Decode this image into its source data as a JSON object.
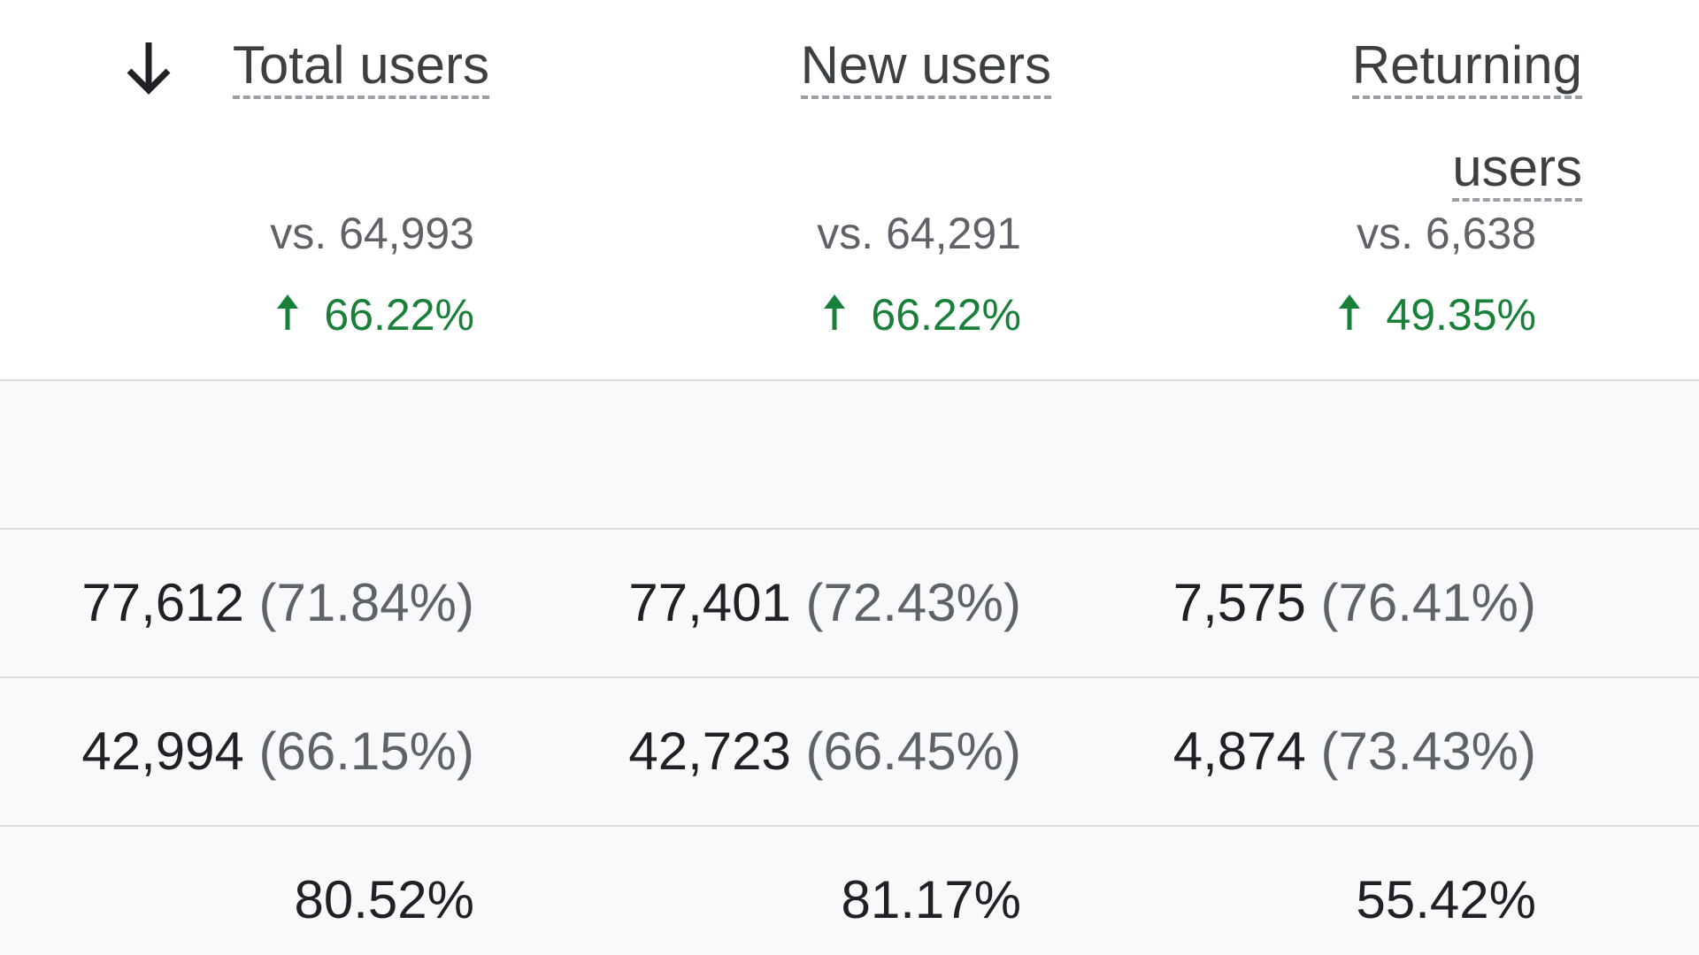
{
  "columns": [
    {
      "header": "Total users",
      "sorted": "descending",
      "comparison": "vs. 64,993",
      "change": "66.22%",
      "change_direction": "up"
    },
    {
      "header": "New users",
      "comparison": "vs. 64,291",
      "change": "66.22%",
      "change_direction": "up"
    },
    {
      "header_lines": [
        "Returning",
        "users"
      ],
      "comparison": "vs. 6,638",
      "change": "49.35%",
      "change_direction": "up"
    }
  ],
  "rows": [
    {
      "cells": [
        {
          "value": "77,612",
          "pct": "(71.84%)"
        },
        {
          "value": "77,401",
          "pct": "(72.43%)"
        },
        {
          "value": "7,575",
          "pct": "(76.41%)"
        }
      ]
    },
    {
      "cells": [
        {
          "value": "42,994",
          "pct": "(66.15%)"
        },
        {
          "value": "42,723",
          "pct": "(66.45%)"
        },
        {
          "value": "4,874",
          "pct": "(73.43%)"
        }
      ]
    },
    {
      "cells": [
        {
          "value": "80.52%"
        },
        {
          "value": "81.17%"
        },
        {
          "value": "55.42%"
        }
      ]
    }
  ],
  "colors": {
    "positive_change": "#188038",
    "header_text": "#3c4043",
    "muted_text": "#5f6368",
    "value_text": "#202124",
    "body_bg": "#f8f9fa",
    "divider": "#dadce0"
  }
}
